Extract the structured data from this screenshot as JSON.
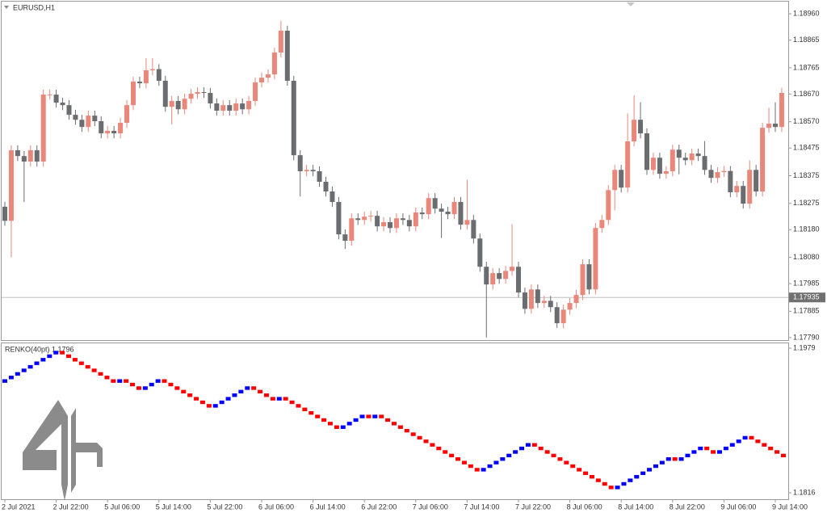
{
  "chart_data": [
    {
      "type": "candlestick",
      "title": "EURUSD,H1",
      "categories": [
        "2 Jul 2021",
        null,
        null,
        null,
        null,
        null,
        null,
        null,
        "2 Jul 22:00",
        null,
        null,
        null,
        null,
        null,
        null,
        null,
        "5 Jul 06:00",
        null,
        null,
        null,
        null,
        null,
        null,
        null,
        "5 Jul 14:00",
        null,
        null,
        null,
        null,
        null,
        null,
        null,
        "5 Jul 22:00",
        null,
        null,
        null,
        null,
        null,
        null,
        null,
        "6 Jul 06:00",
        null,
        null,
        null,
        null,
        null,
        null,
        null,
        "6 Jul 14:00",
        null,
        null,
        null,
        null,
        null,
        null,
        null,
        "6 Jul 22:00",
        null,
        null,
        null,
        null,
        null,
        null,
        null,
        "7 Jul 06:00",
        null,
        null,
        null,
        null,
        null,
        null,
        null,
        "7 Jul 14:00",
        null,
        null,
        null,
        null,
        null,
        null,
        null,
        "7 Jul 22:00",
        null,
        null,
        null,
        null,
        null,
        null,
        null,
        "8 Jul 06:00",
        null,
        null,
        null,
        null,
        null,
        null,
        null,
        "8 Jul 14:00",
        null,
        null,
        null,
        null,
        null,
        null,
        null,
        "8 Jul 22:00",
        null,
        null,
        null,
        null,
        null,
        null,
        null,
        "9 Jul 06:00",
        null,
        null,
        null,
        null,
        null,
        null,
        null,
        "9 Jul 14:00",
        null
      ],
      "open": [
        1.18263,
        1.18212,
        1.18467,
        1.18446,
        1.18426,
        1.18467,
        1.18426,
        1.18668,
        1.18668,
        1.18639,
        1.1863,
        1.18595,
        1.18577,
        1.18551,
        1.18592,
        1.18572,
        1.18528,
        1.18537,
        1.18528,
        1.18566,
        1.1863,
        1.18715,
        1.18709,
        1.18756,
        1.1876,
        1.18718,
        1.18624,
        1.18645,
        1.18615,
        1.18653,
        1.18671,
        1.18677,
        1.18674,
        1.18636,
        1.1861,
        1.1863,
        1.1861,
        1.18636,
        1.18615,
        1.18645,
        1.18712,
        1.18729,
        1.18741,
        1.1882,
        1.18899,
        1.18718,
        1.18449,
        1.18391,
        1.18396,
        1.18391,
        1.18353,
        1.18318,
        1.1828,
        1.18163,
        1.1814,
        1.18221,
        1.18215,
        1.18227,
        1.1823,
        1.18192,
        1.18207,
        1.18186,
        1.18221,
        1.18215,
        1.18192,
        1.18242,
        1.18236,
        1.18294,
        1.18256,
        1.18245,
        1.18236,
        1.1828,
        1.18198,
        1.18215,
        1.18148,
        1.18046,
        1.17982,
        1.18023,
        1.18002,
        1.18031,
        1.18046,
        1.17953,
        1.17894,
        1.17964,
        1.17915,
        1.17923,
        1.179,
        1.17842,
        1.17891,
        1.17915,
        1.17944,
        1.18055,
        1.17964,
        1.18186,
        1.18215,
        1.18323,
        1.18396,
        1.18332,
        1.18499,
        1.18577,
        1.18528,
        1.18396,
        1.1844,
        1.18382,
        1.18391,
        1.18469,
        1.1844,
        1.18431,
        1.18455,
        1.18446,
        1.18396,
        1.18367,
        1.18388,
        1.18392,
        1.18315,
        1.18338,
        1.18274,
        1.18396,
        1.18318,
        1.18548,
        1.18563,
        1.18551
      ],
      "high": [
        1.18281,
        1.18485,
        1.18485,
        1.18464,
        1.18485,
        1.18485,
        1.18686,
        1.18686,
        1.18686,
        1.18657,
        1.18648,
        1.18613,
        1.18595,
        1.1861,
        1.1861,
        1.1859,
        1.18555,
        1.18555,
        1.18584,
        1.18648,
        1.18733,
        1.18733,
        1.188,
        1.188,
        1.18778,
        1.18736,
        1.18663,
        1.18663,
        1.18671,
        1.18689,
        1.18695,
        1.18695,
        1.18692,
        1.18654,
        1.18648,
        1.18648,
        1.18654,
        1.18654,
        1.18663,
        1.1873,
        1.18747,
        1.18759,
        1.18838,
        1.18935,
        1.18917,
        1.18736,
        1.18467,
        1.18414,
        1.18414,
        1.18409,
        1.18371,
        1.18336,
        1.18298,
        1.18181,
        1.18239,
        1.18239,
        1.18245,
        1.18248,
        1.18248,
        1.18225,
        1.18225,
        1.18239,
        1.18239,
        1.18233,
        1.1826,
        1.1826,
        1.18312,
        1.18312,
        1.18274,
        1.18263,
        1.18298,
        1.18298,
        1.1836,
        1.18233,
        1.18166,
        1.18064,
        1.18041,
        1.18041,
        1.18049,
        1.182,
        1.18064,
        1.17971,
        1.17982,
        1.17982,
        1.17941,
        1.17941,
        1.17918,
        1.17909,
        1.17933,
        1.17962,
        1.18073,
        1.18073,
        1.18204,
        1.18233,
        1.18341,
        1.18414,
        1.18414,
        1.186,
        1.18665,
        1.1864,
        1.18546,
        1.18458,
        1.18458,
        1.18409,
        1.18487,
        1.18487,
        1.18458,
        1.18473,
        1.18473,
        1.185,
        1.18414,
        1.18406,
        1.1841,
        1.1841,
        1.18356,
        1.18356,
        1.1843,
        1.18414,
        1.18566,
        1.1862,
        1.1864,
        1.18692
      ],
      "low": [
        1.18194,
        1.1808,
        1.18428,
        1.1828,
        1.18408,
        1.18408,
        1.18408,
        1.1865,
        1.18621,
        1.18612,
        1.18577,
        1.18559,
        1.18533,
        1.18533,
        1.18554,
        1.1851,
        1.1851,
        1.1851,
        1.1851,
        1.18548,
        1.18612,
        1.18691,
        1.18691,
        1.18738,
        1.187,
        1.18606,
        1.1856,
        1.18597,
        1.18597,
        1.18635,
        1.18653,
        1.18656,
        1.18618,
        1.18592,
        1.18592,
        1.18592,
        1.18592,
        1.18597,
        1.18597,
        1.18627,
        1.18694,
        1.18711,
        1.18723,
        1.18802,
        1.187,
        1.18431,
        1.183,
        1.18373,
        1.18373,
        1.18335,
        1.183,
        1.18262,
        1.18145,
        1.1811,
        1.18122,
        1.18197,
        1.18197,
        1.18209,
        1.18174,
        1.18174,
        1.18168,
        1.18168,
        1.18197,
        1.18174,
        1.18174,
        1.18218,
        1.18218,
        1.18238,
        1.1815,
        1.18218,
        1.18218,
        1.1818,
        1.1818,
        1.1813,
        1.18028,
        1.1779,
        1.17964,
        1.17984,
        1.17984,
        1.18013,
        1.17935,
        1.17876,
        1.17876,
        1.17897,
        1.17897,
        1.17882,
        1.17825,
        1.17824,
        1.17873,
        1.17897,
        1.17926,
        1.17946,
        1.17946,
        1.18168,
        1.18197,
        1.1825,
        1.18314,
        1.18314,
        1.18481,
        1.1851,
        1.18378,
        1.18378,
        1.18364,
        1.18364,
        1.18373,
        1.1838,
        1.18413,
        1.18413,
        1.18428,
        1.18378,
        1.18349,
        1.18349,
        1.1837,
        1.18297,
        1.18297,
        1.18256,
        1.18256,
        1.183,
        1.183,
        1.1853,
        1.18533,
        1.18533
      ],
      "close": [
        1.18212,
        1.18467,
        1.18446,
        1.18426,
        1.18467,
        1.18426,
        1.18668,
        1.18668,
        1.18639,
        1.1863,
        1.18595,
        1.18577,
        1.18551,
        1.18592,
        1.18572,
        1.18528,
        1.18537,
        1.18528,
        1.18566,
        1.1863,
        1.18715,
        1.18709,
        1.18756,
        1.1876,
        1.18718,
        1.18624,
        1.18645,
        1.18615,
        1.18653,
        1.18671,
        1.18677,
        1.18674,
        1.18636,
        1.1861,
        1.1863,
        1.1861,
        1.18636,
        1.18615,
        1.18645,
        1.18712,
        1.18729,
        1.18741,
        1.1882,
        1.18899,
        1.18718,
        1.18449,
        1.18391,
        1.18396,
        1.18391,
        1.18353,
        1.18318,
        1.1828,
        1.18163,
        1.1814,
        1.18221,
        1.18215,
        1.18227,
        1.1823,
        1.18192,
        1.18207,
        1.18186,
        1.18221,
        1.18215,
        1.18192,
        1.18242,
        1.18236,
        1.18294,
        1.18256,
        1.18245,
        1.18236,
        1.1828,
        1.18198,
        1.18215,
        1.18148,
        1.18046,
        1.17982,
        1.18023,
        1.18002,
        1.18031,
        1.18046,
        1.17953,
        1.17894,
        1.17964,
        1.17915,
        1.17923,
        1.179,
        1.17842,
        1.17891,
        1.17915,
        1.17944,
        1.18055,
        1.17964,
        1.18186,
        1.18215,
        1.18323,
        1.18396,
        1.18332,
        1.18499,
        1.18577,
        1.18528,
        1.18396,
        1.1844,
        1.18382,
        1.18391,
        1.18469,
        1.1844,
        1.18431,
        1.18455,
        1.18446,
        1.18396,
        1.18367,
        1.18388,
        1.18392,
        1.18315,
        1.18338,
        1.18274,
        1.18396,
        1.18318,
        1.18548,
        1.18563,
        1.18551,
        1.18674
      ],
      "up_color": "#e8877a",
      "down_color": "#6a6c6f",
      "last_price": 1.17935,
      "ylim": [
        1.17781,
        1.19004
      ],
      "yticks": [
        {
          "value": 1.1896,
          "label": "1.18960"
        },
        1.18865,
        1.18765,
        {
          "value": 1.1867,
          "label": "1.18670"
        },
        {
          "value": 1.1857,
          "label": "1.18570"
        },
        1.18475,
        1.18375,
        1.18275,
        {
          "value": 1.1818,
          "label": "1.18180"
        },
        {
          "value": 1.1808,
          "label": "1.18080"
        },
        1.17985,
        1.17885,
        {
          "value": 1.1779,
          "label": "1.17790"
        }
      ]
    },
    {
      "type": "renko",
      "title": "RENKO(40pt) 1.1796",
      "values": [
        1.1944,
        1.1948,
        1.1952,
        1.1956,
        1.196,
        1.1964,
        1.1968,
        1.1972,
        1.1976,
        1.1972,
        1.1968,
        1.1964,
        1.196,
        1.1956,
        1.1952,
        1.1948,
        1.1944,
        1.194,
        1.1944,
        1.194,
        1.1936,
        1.1932,
        1.1936,
        1.194,
        1.1944,
        1.194,
        1.1936,
        1.1932,
        1.1928,
        1.1924,
        1.192,
        1.1916,
        1.1912,
        1.1916,
        1.192,
        1.1924,
        1.1928,
        1.1932,
        1.1936,
        1.1932,
        1.1928,
        1.1924,
        1.192,
        1.1924,
        1.192,
        1.1916,
        1.1912,
        1.1908,
        1.1904,
        1.19,
        1.1896,
        1.1892,
        1.1888,
        1.1892,
        1.1896,
        1.19,
        1.1904,
        1.19,
        1.1904,
        1.19,
        1.1896,
        1.1892,
        1.1888,
        1.1884,
        1.188,
        1.1876,
        1.1872,
        1.1868,
        1.1864,
        1.186,
        1.1856,
        1.1852,
        1.1848,
        1.1844,
        1.184,
        1.1844,
        1.1848,
        1.1852,
        1.1856,
        1.186,
        1.1864,
        1.1868,
        1.1872,
        1.1868,
        1.1864,
        1.186,
        1.1856,
        1.1852,
        1.1848,
        1.1844,
        1.184,
        1.1836,
        1.1832,
        1.1828,
        1.1824,
        1.182,
        1.1824,
        1.1828,
        1.1832,
        1.1836,
        1.184,
        1.1844,
        1.1848,
        1.1852,
        1.1856,
        1.1852,
        1.1856,
        1.186,
        1.1864,
        1.1868,
        1.1864,
        1.186,
        1.1864,
        1.1868,
        1.1872,
        1.1876,
        1.188,
        1.1876,
        1.1872,
        1.1868,
        1.1864,
        1.186,
        1.1856
      ],
      "up_color": "#0000ff",
      "down_color": "#ff0000",
      "ylim": [
        1.18087,
        1.19845
      ],
      "yticks": [
        1.1979,
        1.1816
      ]
    }
  ]
}
